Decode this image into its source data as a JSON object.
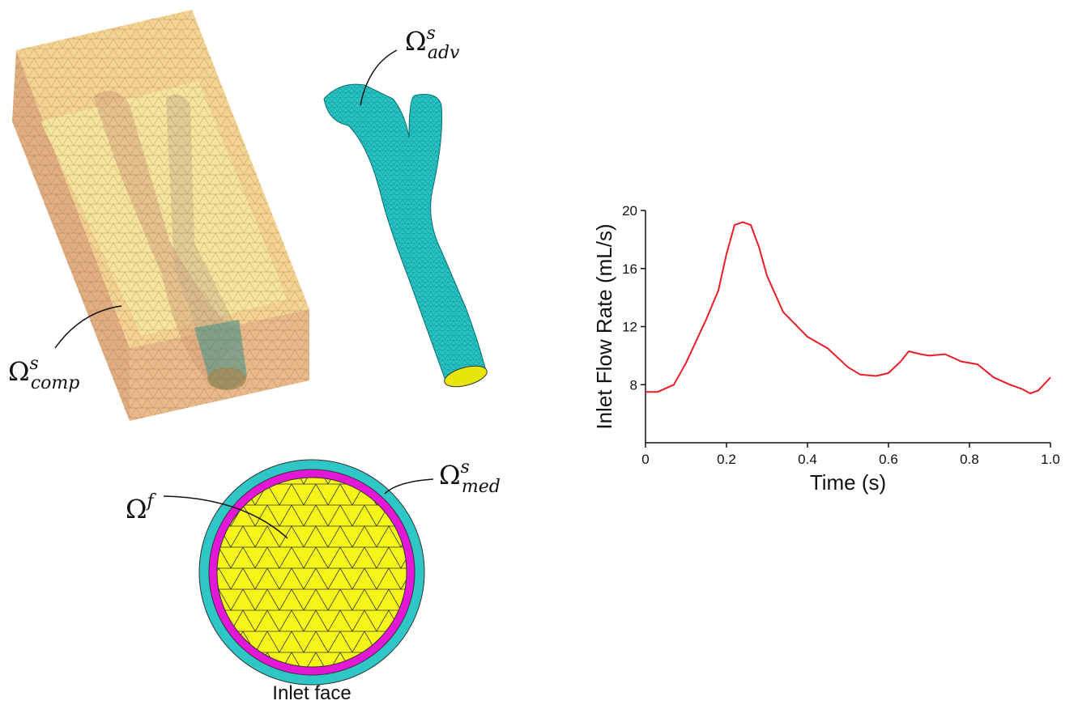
{
  "labels": {
    "adv": {
      "base": "Ω",
      "sup": "s",
      "sub": "adv"
    },
    "comp": {
      "base": "Ω",
      "sup": "s",
      "sub": "comp"
    },
    "fluid": {
      "base": "Ω",
      "sup": "f"
    },
    "med": {
      "base": "Ω",
      "sup": "s",
      "sub": "med"
    },
    "inlet": "Inlet face"
  },
  "chart_data": {
    "type": "line",
    "x_label": "Time (s)",
    "y_label": "Inlet Flow Rate (mL/s)",
    "x": [
      0,
      0.03,
      0.07,
      0.1,
      0.15,
      0.18,
      0.2,
      0.22,
      0.24,
      0.26,
      0.28,
      0.3,
      0.34,
      0.4,
      0.45,
      0.5,
      0.53,
      0.57,
      0.6,
      0.63,
      0.65,
      0.68,
      0.7,
      0.74,
      0.78,
      0.82,
      0.86,
      0.9,
      0.93,
      0.95,
      0.97,
      1.0
    ],
    "values": [
      7.5,
      7.5,
      8.0,
      9.5,
      12.5,
      14.5,
      17,
      19,
      19.2,
      19,
      17.5,
      15.5,
      13,
      11.3,
      10.5,
      9.2,
      8.7,
      8.6,
      8.8,
      9.6,
      10.3,
      10.1,
      10,
      10.1,
      9.6,
      9.4,
      8.5,
      8.0,
      7.7,
      7.4,
      7.6,
      8.5
    ],
    "color": "#ec1c24",
    "xlim": [
      0,
      1
    ],
    "xticks": [
      0,
      0.2,
      0.4,
      0.6,
      0.8,
      {
        "value": 1,
        "label": "1.0"
      }
    ],
    "ylim": [
      4,
      20
    ],
    "yticks": [
      8,
      12,
      16,
      20
    ]
  }
}
